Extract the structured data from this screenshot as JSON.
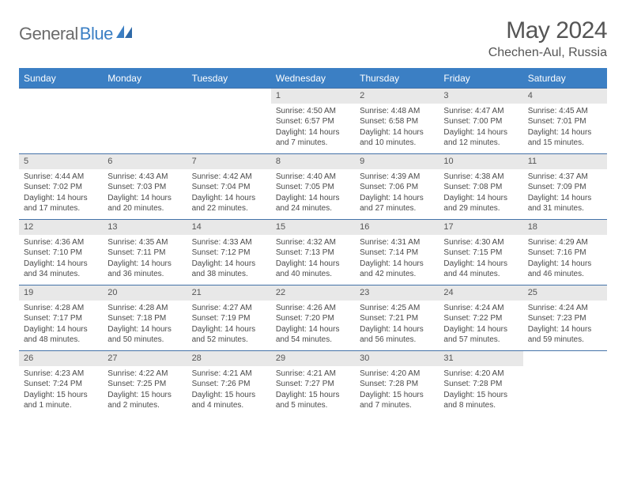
{
  "logo": {
    "text1": "General",
    "text2": "Blue"
  },
  "title": "May 2024",
  "location": "Chechen-Aul, Russia",
  "day_names": [
    "Sunday",
    "Monday",
    "Tuesday",
    "Wednesday",
    "Thursday",
    "Friday",
    "Saturday"
  ],
  "colors": {
    "header_bg": "#3b7fc4",
    "week_border": "#4472a8",
    "daynum_bg": "#e8e8e8",
    "text": "#4a4a4a"
  },
  "weeks": [
    [
      {
        "empty": true
      },
      {
        "empty": true
      },
      {
        "empty": true
      },
      {
        "day": "1",
        "sunrise": "Sunrise: 4:50 AM",
        "sunset": "Sunset: 6:57 PM",
        "daylight": "Daylight: 14 hours and 7 minutes."
      },
      {
        "day": "2",
        "sunrise": "Sunrise: 4:48 AM",
        "sunset": "Sunset: 6:58 PM",
        "daylight": "Daylight: 14 hours and 10 minutes."
      },
      {
        "day": "3",
        "sunrise": "Sunrise: 4:47 AM",
        "sunset": "Sunset: 7:00 PM",
        "daylight": "Daylight: 14 hours and 12 minutes."
      },
      {
        "day": "4",
        "sunrise": "Sunrise: 4:45 AM",
        "sunset": "Sunset: 7:01 PM",
        "daylight": "Daylight: 14 hours and 15 minutes."
      }
    ],
    [
      {
        "day": "5",
        "sunrise": "Sunrise: 4:44 AM",
        "sunset": "Sunset: 7:02 PM",
        "daylight": "Daylight: 14 hours and 17 minutes."
      },
      {
        "day": "6",
        "sunrise": "Sunrise: 4:43 AM",
        "sunset": "Sunset: 7:03 PM",
        "daylight": "Daylight: 14 hours and 20 minutes."
      },
      {
        "day": "7",
        "sunrise": "Sunrise: 4:42 AM",
        "sunset": "Sunset: 7:04 PM",
        "daylight": "Daylight: 14 hours and 22 minutes."
      },
      {
        "day": "8",
        "sunrise": "Sunrise: 4:40 AM",
        "sunset": "Sunset: 7:05 PM",
        "daylight": "Daylight: 14 hours and 24 minutes."
      },
      {
        "day": "9",
        "sunrise": "Sunrise: 4:39 AM",
        "sunset": "Sunset: 7:06 PM",
        "daylight": "Daylight: 14 hours and 27 minutes."
      },
      {
        "day": "10",
        "sunrise": "Sunrise: 4:38 AM",
        "sunset": "Sunset: 7:08 PM",
        "daylight": "Daylight: 14 hours and 29 minutes."
      },
      {
        "day": "11",
        "sunrise": "Sunrise: 4:37 AM",
        "sunset": "Sunset: 7:09 PM",
        "daylight": "Daylight: 14 hours and 31 minutes."
      }
    ],
    [
      {
        "day": "12",
        "sunrise": "Sunrise: 4:36 AM",
        "sunset": "Sunset: 7:10 PM",
        "daylight": "Daylight: 14 hours and 34 minutes."
      },
      {
        "day": "13",
        "sunrise": "Sunrise: 4:35 AM",
        "sunset": "Sunset: 7:11 PM",
        "daylight": "Daylight: 14 hours and 36 minutes."
      },
      {
        "day": "14",
        "sunrise": "Sunrise: 4:33 AM",
        "sunset": "Sunset: 7:12 PM",
        "daylight": "Daylight: 14 hours and 38 minutes."
      },
      {
        "day": "15",
        "sunrise": "Sunrise: 4:32 AM",
        "sunset": "Sunset: 7:13 PM",
        "daylight": "Daylight: 14 hours and 40 minutes."
      },
      {
        "day": "16",
        "sunrise": "Sunrise: 4:31 AM",
        "sunset": "Sunset: 7:14 PM",
        "daylight": "Daylight: 14 hours and 42 minutes."
      },
      {
        "day": "17",
        "sunrise": "Sunrise: 4:30 AM",
        "sunset": "Sunset: 7:15 PM",
        "daylight": "Daylight: 14 hours and 44 minutes."
      },
      {
        "day": "18",
        "sunrise": "Sunrise: 4:29 AM",
        "sunset": "Sunset: 7:16 PM",
        "daylight": "Daylight: 14 hours and 46 minutes."
      }
    ],
    [
      {
        "day": "19",
        "sunrise": "Sunrise: 4:28 AM",
        "sunset": "Sunset: 7:17 PM",
        "daylight": "Daylight: 14 hours and 48 minutes."
      },
      {
        "day": "20",
        "sunrise": "Sunrise: 4:28 AM",
        "sunset": "Sunset: 7:18 PM",
        "daylight": "Daylight: 14 hours and 50 minutes."
      },
      {
        "day": "21",
        "sunrise": "Sunrise: 4:27 AM",
        "sunset": "Sunset: 7:19 PM",
        "daylight": "Daylight: 14 hours and 52 minutes."
      },
      {
        "day": "22",
        "sunrise": "Sunrise: 4:26 AM",
        "sunset": "Sunset: 7:20 PM",
        "daylight": "Daylight: 14 hours and 54 minutes."
      },
      {
        "day": "23",
        "sunrise": "Sunrise: 4:25 AM",
        "sunset": "Sunset: 7:21 PM",
        "daylight": "Daylight: 14 hours and 56 minutes."
      },
      {
        "day": "24",
        "sunrise": "Sunrise: 4:24 AM",
        "sunset": "Sunset: 7:22 PM",
        "daylight": "Daylight: 14 hours and 57 minutes."
      },
      {
        "day": "25",
        "sunrise": "Sunrise: 4:24 AM",
        "sunset": "Sunset: 7:23 PM",
        "daylight": "Daylight: 14 hours and 59 minutes."
      }
    ],
    [
      {
        "day": "26",
        "sunrise": "Sunrise: 4:23 AM",
        "sunset": "Sunset: 7:24 PM",
        "daylight": "Daylight: 15 hours and 1 minute."
      },
      {
        "day": "27",
        "sunrise": "Sunrise: 4:22 AM",
        "sunset": "Sunset: 7:25 PM",
        "daylight": "Daylight: 15 hours and 2 minutes."
      },
      {
        "day": "28",
        "sunrise": "Sunrise: 4:21 AM",
        "sunset": "Sunset: 7:26 PM",
        "daylight": "Daylight: 15 hours and 4 minutes."
      },
      {
        "day": "29",
        "sunrise": "Sunrise: 4:21 AM",
        "sunset": "Sunset: 7:27 PM",
        "daylight": "Daylight: 15 hours and 5 minutes."
      },
      {
        "day": "30",
        "sunrise": "Sunrise: 4:20 AM",
        "sunset": "Sunset: 7:28 PM",
        "daylight": "Daylight: 15 hours and 7 minutes."
      },
      {
        "day": "31",
        "sunrise": "Sunrise: 4:20 AM",
        "sunset": "Sunset: 7:28 PM",
        "daylight": "Daylight: 15 hours and 8 minutes."
      },
      {
        "empty": true
      }
    ]
  ]
}
